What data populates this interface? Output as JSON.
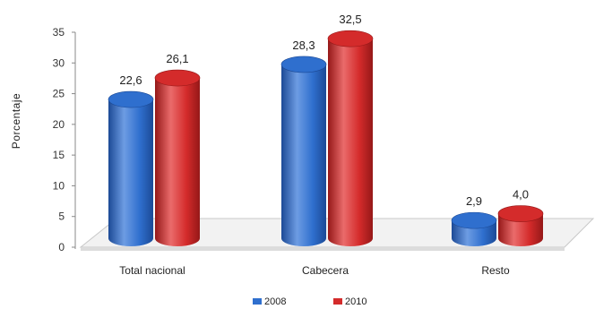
{
  "chart_data": {
    "type": "bar",
    "ylabel": "Porcentaje",
    "ylim": [
      0,
      35
    ],
    "yticks": [
      "0",
      "5",
      "10",
      "15",
      "20",
      "25",
      "30",
      "35"
    ],
    "categories": [
      "Total nacional",
      "Cabecera",
      "Resto"
    ],
    "series": [
      {
        "name": "2008",
        "values": [
          22.6,
          28.3,
          2.9
        ],
        "labels": [
          "22,6",
          "28,3",
          "2,9"
        ],
        "color": "#2f6fce",
        "color_dark": "#1c4a96",
        "color_light": "#6d9ce3"
      },
      {
        "name": "2010",
        "values": [
          26.1,
          32.5,
          4.0
        ],
        "labels": [
          "26,1",
          "32,5",
          "4,0"
        ],
        "color": "#d42b2b",
        "color_dark": "#951818",
        "color_light": "#ea6b6b"
      }
    ],
    "legend_position": "bottom",
    "grid": false,
    "style": "3d-cylinder"
  }
}
